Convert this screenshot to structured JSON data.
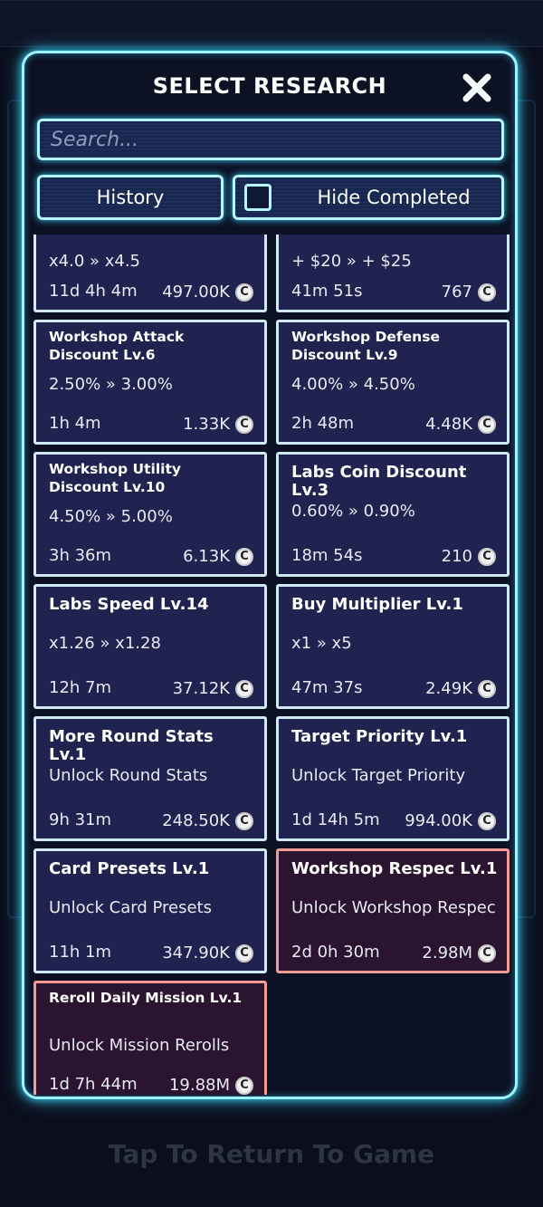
{
  "modal": {
    "title": "SELECT RESEARCH",
    "close_icon": "close-x-icon",
    "search_placeholder": "Search...",
    "history_label": "History",
    "hide_completed_label": "Hide Completed",
    "hide_completed_checked": false
  },
  "cards": [
    {
      "name": "",
      "effect": "x4.0 » x4.5",
      "time": "11d 4h 4m",
      "cost": "497.00K",
      "affordable": true
    },
    {
      "name": "",
      "effect": "+ $20 » + $25",
      "time": "41m 51s",
      "cost": "767",
      "affordable": true
    },
    {
      "name": "Workshop Attack Discount Lv.6",
      "effect": "2.50% » 3.00%",
      "time": "1h 4m",
      "cost": "1.33K",
      "affordable": true
    },
    {
      "name": "Workshop Defense Discount Lv.9",
      "effect": "4.00% » 4.50%",
      "time": "2h 48m",
      "cost": "4.48K",
      "affordable": true
    },
    {
      "name": "Workshop Utility Discount Lv.10",
      "effect": "4.50% » 5.00%",
      "time": "3h 36m",
      "cost": "6.13K",
      "affordable": true
    },
    {
      "name": "Labs Coin Discount Lv.3",
      "effect": "0.60% » 0.90%",
      "time": "18m 54s",
      "cost": "210",
      "affordable": true
    },
    {
      "name": "Labs Speed Lv.14",
      "effect": "x1.26 » x1.28",
      "time": "12h 7m",
      "cost": "37.12K",
      "affordable": true
    },
    {
      "name": "Buy Multiplier Lv.1",
      "effect": "x1 » x5",
      "time": "47m 37s",
      "cost": "2.49K",
      "affordable": true
    },
    {
      "name": "More Round Stats Lv.1",
      "effect": "Unlock Round Stats",
      "time": "9h 31m",
      "cost": "248.50K",
      "affordable": true
    },
    {
      "name": "Target Priority Lv.1",
      "effect": "Unlock Target Priority",
      "time": "1d 14h 5m",
      "cost": "994.00K",
      "affordable": true
    },
    {
      "name": "Card Presets Lv.1",
      "effect": "Unlock Card Presets",
      "time": "11h 1m",
      "cost": "347.90K",
      "affordable": true
    },
    {
      "name": "Workshop Respec Lv.1",
      "effect": "Unlock Workshop Respec",
      "time": "2d 0h 30m",
      "cost": "2.98M",
      "affordable": false
    },
    {
      "name": "Reroll Daily Mission Lv.1",
      "effect": "Unlock Mission Rerolls",
      "time": "1d 7h 44m",
      "cost": "19.88M",
      "affordable": false
    }
  ],
  "currency": {
    "icon": "coin-icon",
    "glyph": "C"
  },
  "colors": {
    "glow": "#39d6ff",
    "card_bg": "#20224f",
    "card_border": "#cfe9f5",
    "unaffordable_border": "#f29a93"
  },
  "footer": {
    "label": "Tap To Return To Game"
  }
}
